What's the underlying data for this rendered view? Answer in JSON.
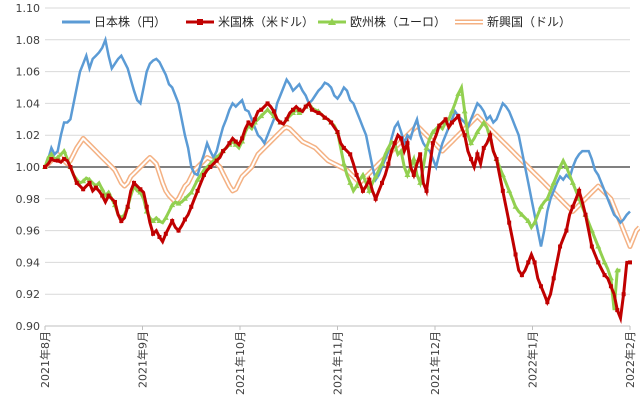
{
  "chart_data": {
    "type": "line",
    "title": "",
    "xlabel": "",
    "ylabel": "",
    "ylim": [
      0.9,
      1.1
    ],
    "yticks": [
      "0.90",
      "0.92",
      "0.94",
      "0.96",
      "0.98",
      "1.00",
      "1.02",
      "1.04",
      "1.06",
      "1.08",
      "1.10"
    ],
    "xticks": [
      "2021年8月",
      "2021年9月",
      "2021年10月",
      "2021年11月",
      "2021年12月",
      "2022年1月",
      "2022年2月"
    ],
    "grid": true,
    "legend_position": "top",
    "reference_line": 1.0,
    "series": [
      {
        "name": "日本株（円）",
        "color": "#5b9bd5",
        "values": [
          1.0,
          1.005,
          1.012,
          1.008,
          1.01,
          1.02,
          1.028,
          1.028,
          1.03,
          1.04,
          1.05,
          1.06,
          1.065,
          1.07,
          1.062,
          1.068,
          1.07,
          1.072,
          1.075,
          1.08,
          1.07,
          1.062,
          1.065,
          1.068,
          1.07,
          1.066,
          1.062,
          1.055,
          1.048,
          1.042,
          1.04,
          1.05,
          1.06,
          1.065,
          1.067,
          1.068,
          1.066,
          1.062,
          1.058,
          1.052,
          1.05,
          1.045,
          1.04,
          1.03,
          1.02,
          1.012,
          1.0,
          0.996,
          0.995,
          1.002,
          1.008,
          1.015,
          1.01,
          1.006,
          1.01,
          1.018,
          1.025,
          1.03,
          1.036,
          1.04,
          1.038,
          1.04,
          1.042,
          1.036,
          1.035,
          1.03,
          1.025,
          1.02,
          1.018,
          1.015,
          1.02,
          1.025,
          1.03,
          1.04,
          1.045,
          1.05,
          1.055,
          1.052,
          1.048,
          1.05,
          1.052,
          1.048,
          1.045,
          1.04,
          1.042,
          1.045,
          1.048,
          1.05,
          1.053,
          1.052,
          1.05,
          1.045,
          1.043,
          1.046,
          1.05,
          1.048,
          1.042,
          1.04,
          1.035,
          1.03,
          1.025,
          1.02,
          1.01,
          1.0,
          0.992,
          0.995,
          1.0,
          1.005,
          1.01,
          1.018,
          1.025,
          1.028,
          1.022,
          1.015,
          1.02,
          1.018,
          1.025,
          1.03,
          1.02,
          1.015,
          1.012,
          1.01,
          1.005,
          1.0,
          1.008,
          1.015,
          1.02,
          1.025,
          1.03,
          1.035,
          1.032,
          1.03,
          1.028,
          1.025,
          1.03,
          1.035,
          1.04,
          1.038,
          1.035,
          1.03,
          1.032,
          1.028,
          1.03,
          1.035,
          1.04,
          1.038,
          1.035,
          1.03,
          1.025,
          1.02,
          1.01,
          1.0,
          0.99,
          0.98,
          0.97,
          0.96,
          0.95,
          0.96,
          0.972,
          0.98,
          0.985,
          0.99,
          0.994,
          0.992,
          0.995,
          0.993,
          1.0,
          1.005,
          1.008,
          1.01,
          1.01,
          1.01,
          1.005,
          0.998,
          0.995,
          0.99,
          0.985,
          0.98,
          0.975,
          0.97,
          0.968,
          0.965,
          0.967,
          0.97,
          0.972
        ]
      },
      {
        "name": "米国株（米ドル）",
        "color": "#c00000",
        "values": [
          1.0,
          1.002,
          1.005,
          1.004,
          1.004,
          1.003,
          1.005,
          1.004,
          1.0,
          0.995,
          0.99,
          0.988,
          0.986,
          0.988,
          0.99,
          0.985,
          0.987,
          0.985,
          0.982,
          0.978,
          0.982,
          0.98,
          0.978,
          0.97,
          0.966,
          0.968,
          0.975,
          0.985,
          0.99,
          0.988,
          0.986,
          0.984,
          0.975,
          0.965,
          0.958,
          0.96,
          0.956,
          0.953,
          0.958,
          0.962,
          0.966,
          0.962,
          0.96,
          0.963,
          0.967,
          0.97,
          0.975,
          0.98,
          0.985,
          0.99,
          0.995,
          0.998,
          1.0,
          1.002,
          1.004,
          1.006,
          1.01,
          1.012,
          1.015,
          1.018,
          1.016,
          1.014,
          1.018,
          1.024,
          1.028,
          1.026,
          1.03,
          1.035,
          1.036,
          1.038,
          1.04,
          1.038,
          1.035,
          1.03,
          1.028,
          1.027,
          1.03,
          1.034,
          1.036,
          1.038,
          1.036,
          1.035,
          1.038,
          1.04,
          1.036,
          1.035,
          1.034,
          1.033,
          1.031,
          1.03,
          1.028,
          1.025,
          1.022,
          1.015,
          1.012,
          1.01,
          1.008,
          1.002,
          0.995,
          0.99,
          0.985,
          0.988,
          0.992,
          0.985,
          0.98,
          0.985,
          0.99,
          0.995,
          1.002,
          1.01,
          1.015,
          1.02,
          1.018,
          1.01,
          1.015,
          1.0,
          0.995,
          1.002,
          1.008,
          0.99,
          0.985,
          1.0,
          1.015,
          1.02,
          1.026,
          1.028,
          1.03,
          1.025,
          1.028,
          1.03,
          1.032,
          1.025,
          1.02,
          1.01,
          1.005,
          1.0,
          1.008,
          1.002,
          1.012,
          1.015,
          1.02,
          1.01,
          1.005,
          0.995,
          0.985,
          0.975,
          0.965,
          0.955,
          0.945,
          0.935,
          0.932,
          0.935,
          0.94,
          0.945,
          0.94,
          0.93,
          0.925,
          0.92,
          0.915,
          0.92,
          0.93,
          0.94,
          0.95,
          0.955,
          0.96,
          0.97,
          0.975,
          0.98,
          0.985,
          0.978,
          0.97,
          0.96,
          0.95,
          0.945,
          0.94,
          0.936,
          0.932,
          0.93,
          0.925,
          0.92,
          0.91,
          0.905,
          0.92,
          0.94,
          0.94
        ]
      },
      {
        "name": "欧州株（ユーロ）",
        "color": "#92d050",
        "values": [
          1.0,
          1.006,
          1.008,
          1.005,
          1.006,
          1.008,
          1.01,
          1.005,
          1.0,
          0.995,
          0.992,
          0.99,
          0.991,
          0.993,
          0.992,
          0.99,
          0.988,
          0.99,
          0.986,
          0.982,
          0.984,
          0.98,
          0.976,
          0.97,
          0.968,
          0.97,
          0.975,
          0.982,
          0.988,
          0.985,
          0.984,
          0.98,
          0.972,
          0.968,
          0.966,
          0.968,
          0.966,
          0.965,
          0.968,
          0.972,
          0.976,
          0.978,
          0.977,
          0.978,
          0.98,
          0.982,
          0.984,
          0.988,
          0.992,
          0.995,
          0.998,
          1.0,
          1.002,
          1.004,
          1.006,
          1.008,
          1.01,
          1.012,
          1.014,
          1.016,
          1.014,
          1.012,
          1.016,
          1.022,
          1.026,
          1.024,
          1.028,
          1.03,
          1.032,
          1.034,
          1.036,
          1.034,
          1.032,
          1.03,
          1.028,
          1.027,
          1.03,
          1.032,
          1.034,
          1.036,
          1.034,
          1.035,
          1.038,
          1.04,
          1.037,
          1.036,
          1.035,
          1.033,
          1.031,
          1.03,
          1.028,
          1.026,
          1.022,
          1.012,
          1.002,
          0.995,
          0.99,
          0.985,
          0.988,
          0.992,
          0.995,
          0.99,
          0.985,
          0.99,
          0.994,
          0.998,
          1.002,
          1.008,
          1.012,
          1.016,
          1.014,
          1.008,
          1.01,
          1.0,
          0.995,
          1.0,
          1.005,
          0.995,
          0.99,
          1.0,
          1.012,
          1.018,
          1.022,
          1.024,
          1.026,
          1.024,
          1.028,
          1.03,
          1.035,
          1.04,
          1.046,
          1.05,
          1.035,
          1.02,
          1.015,
          1.018,
          1.022,
          1.025,
          1.028,
          1.025,
          1.018,
          1.01,
          1.005,
          1.0,
          0.995,
          0.99,
          0.985,
          0.98,
          0.975,
          0.972,
          0.97,
          0.968,
          0.966,
          0.962,
          0.965,
          0.97,
          0.975,
          0.978,
          0.98,
          0.985,
          0.99,
          0.995,
          1.0,
          1.004,
          1.0,
          0.995,
          0.99,
          0.985,
          0.98,
          0.975,
          0.97,
          0.965,
          0.96,
          0.955,
          0.95,
          0.945,
          0.94,
          0.936,
          0.93,
          0.91,
          0.935,
          0.935
        ]
      },
      {
        "name": "新興国（ドル）",
        "color": "#f4b183",
        "values": [
          1.0,
          1.002,
          1.004,
          1.006,
          1.008,
          1.006,
          1.004,
          1.002,
          1.004,
          1.008,
          1.012,
          1.015,
          1.018,
          1.016,
          1.014,
          1.012,
          1.01,
          1.008,
          1.006,
          1.004,
          1.002,
          1.0,
          0.998,
          0.994,
          0.99,
          0.988,
          0.99,
          0.994,
          0.996,
          0.998,
          1.0,
          1.002,
          1.004,
          1.006,
          1.004,
          1.002,
          0.996,
          0.99,
          0.985,
          0.982,
          0.98,
          0.978,
          0.98,
          0.984,
          0.988,
          0.99,
          0.994,
          0.998,
          1.0,
          1.002,
          1.004,
          1.006,
          1.005,
          1.004,
          1.002,
          1.0,
          0.996,
          0.992,
          0.988,
          0.985,
          0.986,
          0.99,
          0.994,
          0.996,
          0.998,
          1.0,
          1.004,
          1.008,
          1.01,
          1.012,
          1.014,
          1.016,
          1.018,
          1.02,
          1.022,
          1.024,
          1.025,
          1.024,
          1.022,
          1.02,
          1.018,
          1.016,
          1.015,
          1.014,
          1.013,
          1.012,
          1.01,
          1.008,
          1.006,
          1.004,
          1.003,
          1.002,
          1.001,
          1.0,
          0.999,
          0.998,
          0.996,
          0.994,
          0.992,
          0.99,
          0.992,
          0.994,
          0.996,
          0.998,
          1.0,
          1.002,
          1.004,
          1.006,
          1.008,
          1.01,
          1.012,
          1.014,
          1.016,
          1.018,
          1.02,
          1.022,
          1.024,
          1.026,
          1.024,
          1.022,
          1.02,
          1.018,
          1.016,
          1.014,
          1.012,
          1.01,
          1.012,
          1.014,
          1.016,
          1.018,
          1.02,
          1.022,
          1.024,
          1.026,
          1.028,
          1.03,
          1.032,
          1.03,
          1.028,
          1.026,
          1.024,
          1.022,
          1.02,
          1.018,
          1.016,
          1.014,
          1.012,
          1.01,
          1.008,
          1.006,
          1.004,
          1.002,
          1.0,
          0.998,
          0.996,
          0.994,
          0.992,
          0.99,
          0.988,
          0.986,
          0.984,
          0.982,
          0.98,
          0.978,
          0.976,
          0.974,
          0.972,
          0.974,
          0.976,
          0.978,
          0.98,
          0.982,
          0.984,
          0.986,
          0.988,
          0.986,
          0.984,
          0.982,
          0.98,
          0.975,
          0.97,
          0.965,
          0.96,
          0.955,
          0.95,
          0.955,
          0.96,
          0.962
        ]
      }
    ]
  }
}
